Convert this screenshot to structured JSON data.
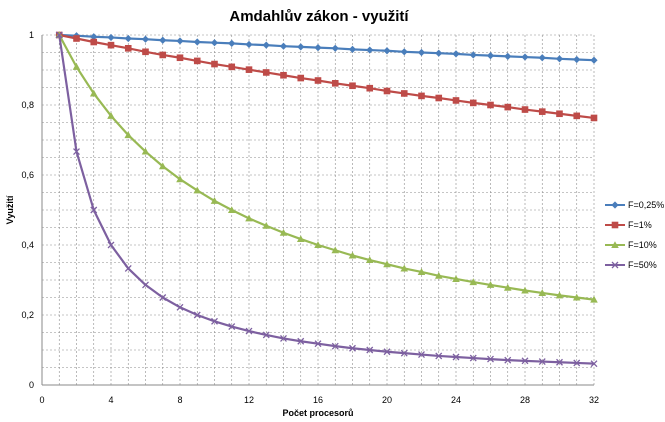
{
  "chart_data": {
    "type": "line",
    "title": "Amdahlův zákon - využití",
    "xlabel": "Počet procesorů",
    "ylabel": "Využití",
    "xlim": [
      0,
      32
    ],
    "ylim": [
      0,
      1
    ],
    "x_ticks": [
      0,
      4,
      8,
      12,
      16,
      20,
      24,
      28,
      32
    ],
    "x_tick_labels": [
      "0",
      "4",
      "8",
      "12",
      "16",
      "20",
      "24",
      "28",
      "32"
    ],
    "y_ticks": [
      0,
      0.2,
      0.4,
      0.6,
      0.8,
      1
    ],
    "y_tick_labels": [
      "0",
      "0,2",
      "0,4",
      "0,6",
      "0,8",
      "1"
    ],
    "x_minor_step": 1,
    "y_minor_step": 0.05,
    "grid": true,
    "legend_position": "right",
    "x": [
      1,
      2,
      3,
      4,
      5,
      6,
      7,
      8,
      9,
      10,
      11,
      12,
      13,
      14,
      15,
      16,
      17,
      18,
      19,
      20,
      21,
      22,
      23,
      24,
      25,
      26,
      27,
      28,
      29,
      30,
      31,
      32
    ],
    "series": [
      {
        "name": "F=0,25%",
        "color": "#4a7ebb",
        "marker": "diamond",
        "values": [
          1,
          0.998,
          0.995,
          0.993,
          0.99,
          0.988,
          0.985,
          0.983,
          0.98,
          0.978,
          0.976,
          0.973,
          0.971,
          0.968,
          0.966,
          0.964,
          0.962,
          0.959,
          0.957,
          0.955,
          0.952,
          0.95,
          0.948,
          0.946,
          0.943,
          0.941,
          0.939,
          0.937,
          0.935,
          0.932,
          0.93,
          0.928
        ]
      },
      {
        "name": "F=1%",
        "color": "#be4b48",
        "marker": "square",
        "values": [
          1,
          0.99,
          0.98,
          0.971,
          0.962,
          0.952,
          0.943,
          0.935,
          0.926,
          0.917,
          0.909,
          0.901,
          0.893,
          0.885,
          0.877,
          0.87,
          0.862,
          0.855,
          0.848,
          0.84,
          0.833,
          0.826,
          0.82,
          0.813,
          0.806,
          0.8,
          0.794,
          0.787,
          0.781,
          0.775,
          0.769,
          0.763
        ]
      },
      {
        "name": "F=10%",
        "color": "#98b954",
        "marker": "triangle",
        "values": [
          1,
          0.909,
          0.833,
          0.769,
          0.714,
          0.667,
          0.625,
          0.588,
          0.556,
          0.526,
          0.5,
          0.476,
          0.455,
          0.435,
          0.417,
          0.4,
          0.385,
          0.37,
          0.357,
          0.345,
          0.333,
          0.323,
          0.312,
          0.303,
          0.294,
          0.286,
          0.278,
          0.27,
          0.263,
          0.256,
          0.25,
          0.244
        ]
      },
      {
        "name": "F=50%",
        "color": "#7d60a0",
        "marker": "x",
        "values": [
          1,
          0.667,
          0.5,
          0.4,
          0.333,
          0.286,
          0.25,
          0.222,
          0.2,
          0.182,
          0.167,
          0.154,
          0.143,
          0.133,
          0.125,
          0.118,
          0.111,
          0.105,
          0.1,
          0.095,
          0.091,
          0.087,
          0.083,
          0.08,
          0.077,
          0.074,
          0.071,
          0.069,
          0.067,
          0.065,
          0.063,
          0.061
        ]
      }
    ]
  }
}
